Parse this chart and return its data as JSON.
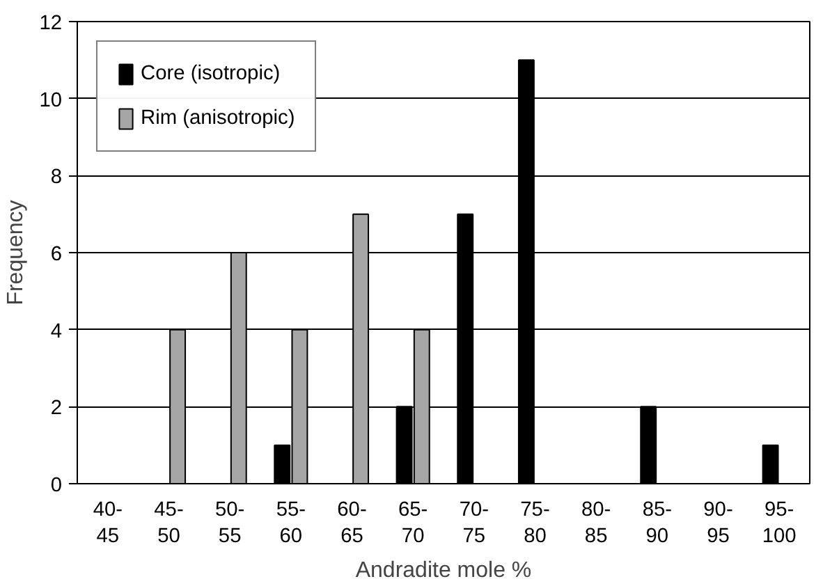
{
  "chart_data": {
    "type": "bar",
    "xlabel": "Andradite mole %",
    "ylabel": "Frequency",
    "categories": [
      "40-\n45",
      "45-\n50",
      "50-\n55",
      "55-\n60",
      "60-\n65",
      "65-\n70",
      "70-\n75",
      "75-\n80",
      "80-\n85",
      "85-\n90",
      "90-\n95",
      "95-\n100"
    ],
    "series": [
      {
        "name": "Core (isotropic)",
        "color": "#000000",
        "values": [
          null,
          null,
          null,
          1,
          null,
          2,
          7,
          11,
          null,
          2,
          null,
          1
        ]
      },
      {
        "name": "Rim (anisotropic)",
        "color": "#a6a6a6",
        "values": [
          null,
          4,
          6,
          4,
          7,
          4,
          null,
          null,
          null,
          null,
          null,
          null
        ]
      }
    ],
    "ylim": [
      0,
      12
    ],
    "yticks": [
      0,
      2,
      4,
      6,
      8,
      10,
      12
    ],
    "grid": "y",
    "legend": "top left"
  }
}
